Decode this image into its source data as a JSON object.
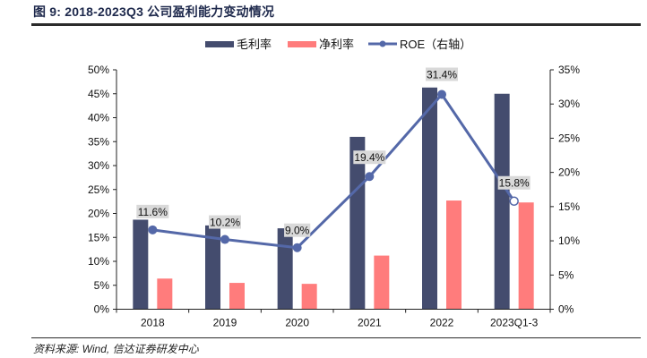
{
  "header": {
    "title": "图 9:  2018-2023Q3 公司盈利能力变动情况"
  },
  "footer": {
    "source": "资料来源: Wind, 信达证券研发中心"
  },
  "colors": {
    "gross_margin": "#444c6e",
    "net_margin": "#ff7c7c",
    "roe": "#5468a8",
    "label_bg": "#d9d9d9",
    "axis": "#222222"
  },
  "chart_data": {
    "type": "bar",
    "title": "2018-2023Q3 公司盈利能力变动情况",
    "xlabel": "",
    "ylabel": "",
    "categories": [
      "2018",
      "2019",
      "2020",
      "2021",
      "2022",
      "2023Q1-3"
    ],
    "series": [
      {
        "name": "毛利率",
        "type": "bar",
        "axis": "left",
        "values": [
          18.7,
          17.5,
          16.9,
          36.0,
          46.3,
          45.0
        ]
      },
      {
        "name": "净利率",
        "type": "bar",
        "axis": "left",
        "values": [
          6.4,
          5.5,
          5.3,
          11.2,
          22.7,
          22.3
        ]
      },
      {
        "name": "ROE（右轴）",
        "type": "line",
        "axis": "right",
        "values": [
          11.6,
          10.2,
          9.0,
          19.4,
          31.4,
          15.8
        ],
        "data_labels": [
          "11.6%",
          "10.2%",
          "9.0%",
          "19.4%",
          "31.4%",
          "15.8%"
        ]
      }
    ],
    "ylim": [
      0,
      50
    ],
    "y_ticks": [
      "0%",
      "5%",
      "10%",
      "15%",
      "20%",
      "25%",
      "30%",
      "35%",
      "40%",
      "45%",
      "50%"
    ],
    "y2lim": [
      0,
      35
    ],
    "y2_ticks": [
      "0%",
      "5%",
      "10%",
      "15%",
      "20%",
      "25%",
      "30%",
      "35%"
    ],
    "legend": {
      "position": "top",
      "entries": [
        "毛利率",
        "净利率",
        "ROE（右轴）"
      ]
    },
    "grid": false
  }
}
